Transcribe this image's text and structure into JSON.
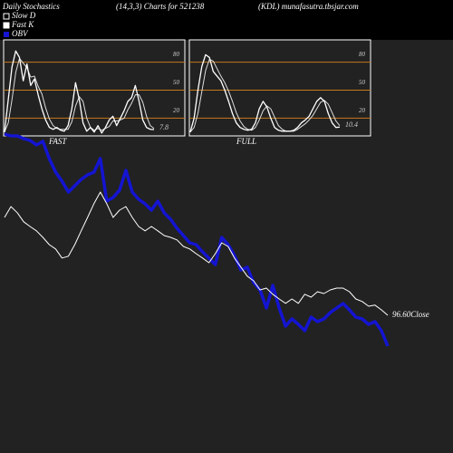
{
  "header": {
    "title": "Daily Stochastics",
    "subtitle": "(14,3,3) Charts for 521238",
    "source": "(KDL) munafasutra.tbsjar.com"
  },
  "chart_data": [
    {
      "type": "line",
      "title": "FAST",
      "ylim": [
        0,
        100
      ],
      "yticks": [
        20,
        50,
        80
      ],
      "grid": true,
      "grid_color": "#c47a1c",
      "series": [
        {
          "name": "Slow D",
          "color": "#dddddd",
          "values": [
            5,
            15,
            40,
            69,
            84,
            79,
            74,
            64,
            65,
            54,
            46,
            31,
            19,
            12,
            9,
            8,
            8,
            8,
            16,
            33,
            43,
            38,
            20,
            10,
            7,
            9,
            7,
            9,
            11,
            17,
            17,
            18,
            20,
            29,
            36,
            45,
            45,
            37,
            22,
            12,
            9
          ]
        },
        {
          "name": "Fast K",
          "color": "#ffffff",
          "values": [
            5,
            40,
            75,
            92,
            85,
            60,
            78,
            55,
            62,
            45,
            30,
            18,
            10,
            8,
            10,
            7,
            6,
            12,
            30,
            58,
            40,
            15,
            6,
            10,
            5,
            12,
            4,
            10,
            18,
            22,
            12,
            20,
            28,
            38,
            42,
            55,
            38,
            18,
            10,
            8,
            7.8
          ]
        }
      ]
    },
    {
      "type": "line",
      "title": "FULL",
      "ylim": [
        0,
        100
      ],
      "yticks": [
        20,
        50,
        80
      ],
      "grid": true,
      "grid_color": "#c47a1c",
      "series": [
        {
          "color": "#dddddd",
          "values": [
            5,
            10,
            25,
            48,
            71,
            83,
            81,
            73,
            65,
            58,
            49,
            38,
            26,
            17,
            11,
            8,
            7,
            10,
            18,
            28,
            33,
            30,
            21,
            12,
            8,
            6,
            6,
            6,
            8,
            11,
            14,
            18,
            23,
            30,
            37,
            39,
            35,
            26,
            17,
            12
          ]
        },
        {
          "color": "#ffffff",
          "values": [
            5,
            20,
            50,
            75,
            88,
            85,
            70,
            65,
            60,
            50,
            38,
            25,
            15,
            10,
            8,
            7,
            8,
            15,
            30,
            38,
            32,
            20,
            10,
            7,
            6,
            6,
            6,
            7,
            10,
            15,
            18,
            22,
            30,
            38,
            42,
            38,
            25,
            15,
            10,
            10.4
          ]
        }
      ]
    },
    {
      "type": "line",
      "ylim": [
        83.6,
        151.1
      ],
      "y2lim": [
        0,
        270000
      ],
      "last_label": "96.60Close",
      "series": [
        {
          "color": "#ffffff",
          "values": [
            123.6,
            126.6,
            124.9,
            122.4,
            121.1,
            119.9,
            118.1,
            116.1,
            114.9,
            112.4,
            112.9,
            116.1,
            119.9,
            123.6,
            127.4,
            130.6,
            127.4,
            123.6,
            125.6,
            126.6,
            123.6,
            121.1,
            119.9,
            121.1,
            119.9,
            118.6,
            118.1,
            117.4,
            115.6,
            114.9,
            113.6,
            112.4,
            111.1,
            113.6,
            116.6,
            115.6,
            112.4,
            109.9,
            107.4,
            106.1,
            103.6,
            104.1,
            102.4,
            101.1,
            99.9,
            101.1,
            99.9,
            102.4,
            101.6,
            103.1,
            102.6,
            103.6,
            104.1,
            104.1,
            103.1,
            101.1,
            100.4,
            99.1,
            99.4,
            98.1,
            96.6
          ]
        },
        {
          "name": "OBV",
          "color": "#1414d2",
          "axis": "y2",
          "values": [
            252000,
            250000,
            250000,
            247000,
            245000,
            240000,
            244000,
            225000,
            210000,
            200000,
            188000,
            195000,
            202000,
            207000,
            210000,
            225000,
            178000,
            182000,
            190000,
            212000,
            188000,
            180000,
            175000,
            168000,
            178000,
            165000,
            158000,
            148000,
            140000,
            132000,
            130000,
            122000,
            115000,
            108000,
            138000,
            130000,
            118000,
            102000,
            105000,
            88000,
            80000,
            60000,
            85000,
            60000,
            40000,
            48000,
            42000,
            35000,
            50000,
            45000,
            48000,
            55000,
            60000,
            65000,
            58000,
            50000,
            48000,
            42000,
            45000,
            35000,
            18000
          ]
        }
      ]
    }
  ]
}
